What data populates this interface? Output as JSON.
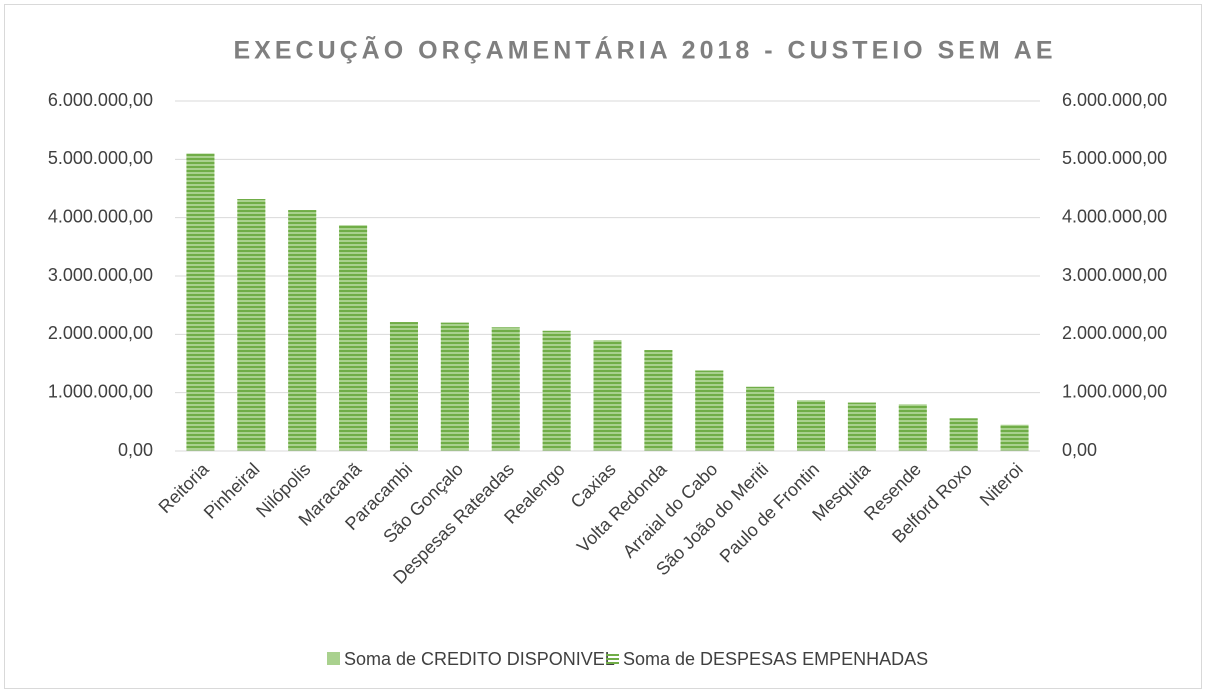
{
  "chart_data": {
    "type": "bar",
    "title": "EXECUÇÃO ORÇAMENTÁRIA 2018 - CUSTEIO SEM AE",
    "categories": [
      "Reitoria",
      "Pinheiral",
      "Nilópolis",
      "Maracanã",
      "Paracambi",
      "São Gonçalo",
      "Despesas Rateadas",
      "Realengo",
      "Caxias",
      "Volta Redonda",
      "Arraial do Cabo",
      "São João do Meriti",
      "Paulo de Frontin",
      "Mesquita",
      "Resende",
      "Belford Roxo",
      "Niteroi"
    ],
    "series": [
      {
        "name": "Soma de CREDITO DISPONIVEL",
        "color": "#a9d18e",
        "values": [
          5100000,
          4320000,
          4130000,
          3870000,
          2210000,
          2200000,
          2120000,
          2060000,
          1900000,
          1730000,
          1380000,
          1100000,
          870000,
          830000,
          800000,
          560000,
          450000
        ]
      },
      {
        "name": "Soma de DESPESAS EMPENHADAS",
        "color": "#70ad47",
        "axis": "y2",
        "values": [
          5100000,
          4320000,
          4130000,
          3870000,
          2210000,
          2200000,
          2120000,
          2060000,
          1900000,
          1730000,
          1380000,
          1100000,
          870000,
          830000,
          800000,
          560000,
          450000
        ]
      }
    ],
    "ylim": [
      0,
      6000000
    ],
    "yticks": [
      {
        "value": 0,
        "label": "0,00"
      },
      {
        "value": 1000000,
        "label": "1.000.000,00"
      },
      {
        "value": 2000000,
        "label": "2.000.000,00"
      },
      {
        "value": 3000000,
        "label": "3.000.000,00"
      },
      {
        "value": 4000000,
        "label": "4.000.000,00"
      },
      {
        "value": 5000000,
        "label": "5.000.000,00"
      },
      {
        "value": 6000000,
        "label": "6.000.000,00"
      }
    ],
    "y2lim": [
      0,
      6000000
    ],
    "y2ticks": [
      {
        "value": 0,
        "label": "0,00"
      },
      {
        "value": 1000000,
        "label": "1.000.000,00"
      },
      {
        "value": 2000000,
        "label": "2.000.000,00"
      },
      {
        "value": 3000000,
        "label": "3.000.000,00"
      },
      {
        "value": 4000000,
        "label": "4.000.000,00"
      },
      {
        "value": 5000000,
        "label": "5.000.000,00"
      },
      {
        "value": 6000000,
        "label": "6.000.000,00"
      }
    ],
    "grid": true,
    "legend": "bottom"
  }
}
